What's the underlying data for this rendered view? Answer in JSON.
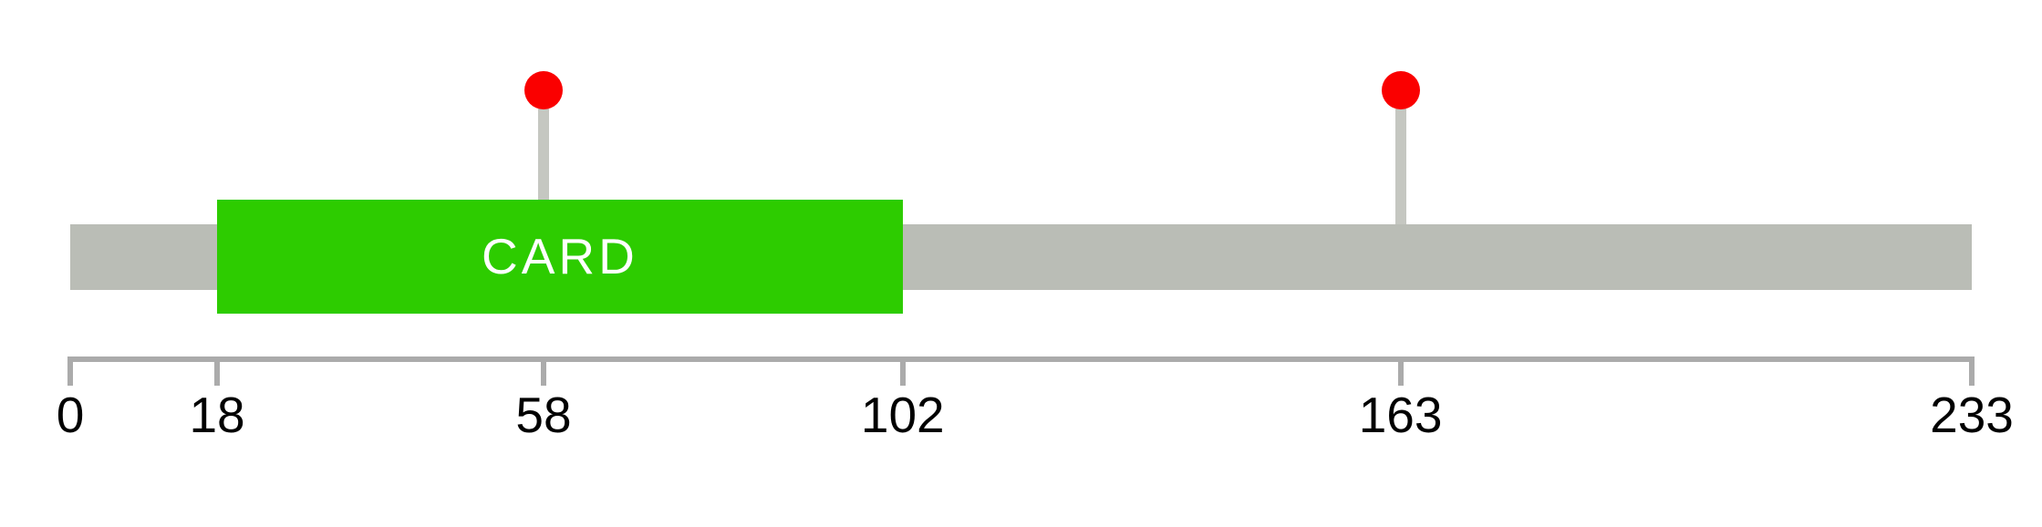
{
  "chart_data": {
    "type": "lollipop",
    "title": "",
    "background_color": "#FFFFFF",
    "axis": {
      "min": 0,
      "max": 233,
      "ticks": [
        0,
        18,
        58,
        102,
        163,
        233
      ],
      "line_color": "#ABABAB",
      "label_color": "#000000"
    },
    "backbone": {
      "start": 0,
      "end": 233,
      "color": "#BABDB6"
    },
    "domains": [
      {
        "label": "CARD",
        "start": 18,
        "end": 102,
        "color": "#2DCC00",
        "label_color": "#FFFFFF"
      }
    ],
    "lollipops": [
      {
        "position": 58,
        "color": "#FA0000"
      },
      {
        "position": 163,
        "color": "#FA0000"
      }
    ],
    "stick_color": "#C5C7C1"
  }
}
